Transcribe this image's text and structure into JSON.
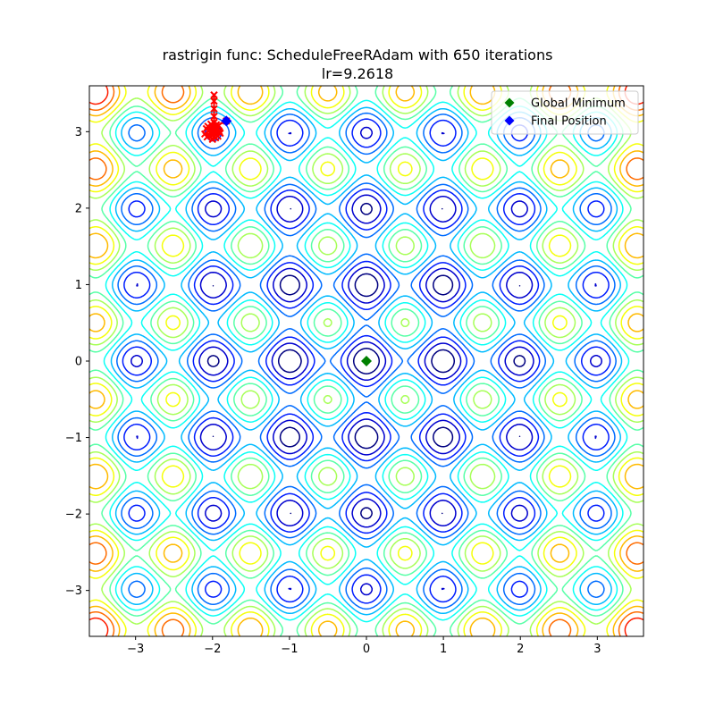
{
  "chart_data": {
    "type": "contour",
    "function": "rastrigin",
    "title_line1": "rastrigin func: ScheduleFreeRAdam with 650 iterations",
    "title_line2": "lr=9.2618",
    "xlim": [
      -3.6,
      3.6
    ],
    "ylim": [
      -3.6,
      3.6
    ],
    "x_ticks": [
      -3,
      -2,
      -1,
      0,
      1,
      2,
      3
    ],
    "y_ticks": [
      -3,
      -2,
      -1,
      0,
      1,
      2,
      3
    ],
    "x_tick_labels": [
      "−3",
      "−2",
      "−1",
      "0",
      "1",
      "2",
      "3"
    ],
    "y_tick_labels": [
      "−3",
      "−2",
      "−1",
      "0",
      "1",
      "2",
      "3"
    ],
    "contour_levels": [
      5,
      10,
      15,
      20,
      25,
      30,
      35,
      40,
      45,
      50,
      55,
      60,
      65,
      70
    ],
    "colormap": "jet",
    "legend": {
      "placement": "top-right",
      "entries": [
        {
          "label": "Global Minimum",
          "color": "#008000",
          "marker": "diamond"
        },
        {
          "label": "Final Position",
          "color": "#0000ff",
          "marker": "diamond"
        }
      ]
    },
    "global_minimum": {
      "x": 0,
      "y": 0
    },
    "final_position": {
      "x": -1.82,
      "y": 3.14
    },
    "path_color": "#ff0000",
    "path": [
      [
        -1.98,
        3.48
      ],
      [
        -1.98,
        3.4
      ],
      [
        -1.98,
        3.3
      ],
      [
        -1.98,
        3.2
      ],
      [
        -1.98,
        3.12
      ],
      [
        -1.98,
        3.05
      ],
      [
        -1.95,
        3.0
      ],
      [
        -2.05,
        2.95
      ],
      [
        -1.92,
        3.08
      ],
      [
        -2.08,
        3.04
      ],
      [
        -1.96,
        2.92
      ],
      [
        -2.02,
        3.1
      ],
      [
        -1.9,
        2.98
      ],
      [
        -2.1,
        2.97
      ],
      [
        -2.0,
        2.9
      ],
      [
        -1.94,
        3.06
      ],
      [
        -2.04,
        3.02
      ],
      [
        -1.99,
        2.96
      ],
      [
        -2.06,
        3.07
      ],
      [
        -1.93,
        2.94
      ],
      [
        -2.01,
        3.01
      ],
      [
        -1.97,
        3.03
      ],
      [
        -2.03,
        2.99
      ],
      [
        -1.95,
        3.09
      ],
      [
        -2.07,
        2.93
      ],
      [
        -1.91,
        3.0
      ],
      [
        -2.0,
        3.05
      ],
      [
        -1.96,
        2.97
      ],
      [
        -2.02,
        3.04
      ],
      [
        -1.82,
        3.14
      ]
    ]
  }
}
